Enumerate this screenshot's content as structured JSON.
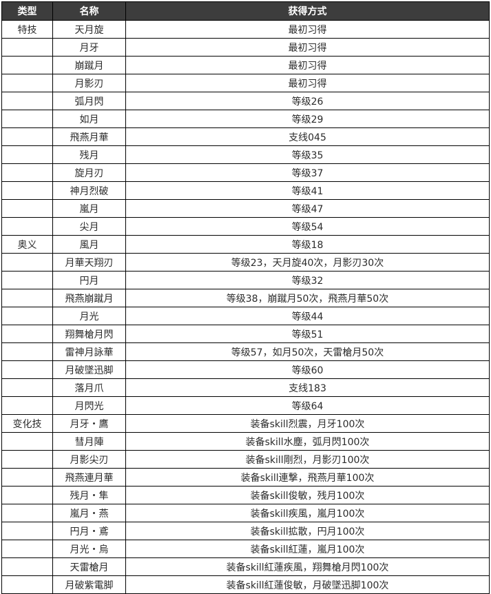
{
  "table": {
    "headers": [
      "类型",
      "名称",
      "获得方式"
    ],
    "rows": [
      {
        "type": "特技",
        "name": "天月旋",
        "method": "最初习得"
      },
      {
        "type": "",
        "name": "月牙",
        "method": "最初习得"
      },
      {
        "type": "",
        "name": "崩蹴月",
        "method": "最初习得"
      },
      {
        "type": "",
        "name": "月影刃",
        "method": "最初习得"
      },
      {
        "type": "",
        "name": "弧月閃",
        "method": "等级26"
      },
      {
        "type": "",
        "name": "如月",
        "method": "等级29"
      },
      {
        "type": "",
        "name": "飛燕月華",
        "method": "支线045"
      },
      {
        "type": "",
        "name": "残月",
        "method": "等级35"
      },
      {
        "type": "",
        "name": "旋月刃",
        "method": "等级37"
      },
      {
        "type": "",
        "name": "神月烈破",
        "method": "等级41"
      },
      {
        "type": "",
        "name": "嵐月",
        "method": "等级47"
      },
      {
        "type": "",
        "name": "尖月",
        "method": "等级54"
      },
      {
        "type": "奥义",
        "name": "風月",
        "method": "等级18"
      },
      {
        "type": "",
        "name": "月華天翔刃",
        "method": "等级23，天月旋40次，月影刃30次"
      },
      {
        "type": "",
        "name": "円月",
        "method": "等级32"
      },
      {
        "type": "",
        "name": "飛燕崩蹴月",
        "method": "等级38，崩蹴月50次，飛燕月華50次"
      },
      {
        "type": "",
        "name": "月光",
        "method": "等级44"
      },
      {
        "type": "",
        "name": "翔舞槍月閃",
        "method": "等级51"
      },
      {
        "type": "",
        "name": "雷神月詠華",
        "method": "等级57，如月50次，天雷槍月50次"
      },
      {
        "type": "",
        "name": "月破墜迅脚",
        "method": "等级60"
      },
      {
        "type": "",
        "name": "落月爪",
        "method": "支线183"
      },
      {
        "type": "",
        "name": "月閃光",
        "method": "等级64"
      },
      {
        "type": "变化技",
        "name": "月牙・鷹",
        "method": "装备skill烈震，月牙100次"
      },
      {
        "type": "",
        "name": "彗月陣",
        "method": "装备skill水塵，弧月閃100次"
      },
      {
        "type": "",
        "name": "月影尖刃",
        "method": "装备skill剛烈，月影刃100次"
      },
      {
        "type": "",
        "name": "飛燕連月華",
        "method": "装备skill連撃，飛燕月華100次"
      },
      {
        "type": "",
        "name": "残月・隼",
        "method": "装备skill俊敏，残月100次"
      },
      {
        "type": "",
        "name": "嵐月・燕",
        "method": "装备skill疾風，嵐月100次"
      },
      {
        "type": "",
        "name": "円月・鳶",
        "method": "装备skill拡散，円月100次"
      },
      {
        "type": "",
        "name": "月光・烏",
        "method": "装备skill紅蓮，嵐月100次"
      },
      {
        "type": "",
        "name": "天雷槍月",
        "method": "装备skill紅蓮疾風，翔舞槍月閃100次"
      },
      {
        "type": "",
        "name": "月破紫電脚",
        "method": "装备skill紅蓮俊敏，月破墜迅脚100次"
      }
    ],
    "colors": {
      "header_bg": "#3d3d3d",
      "header_text": "#ffffff",
      "border": "#000000",
      "body_text": "#2b2b2b"
    }
  }
}
